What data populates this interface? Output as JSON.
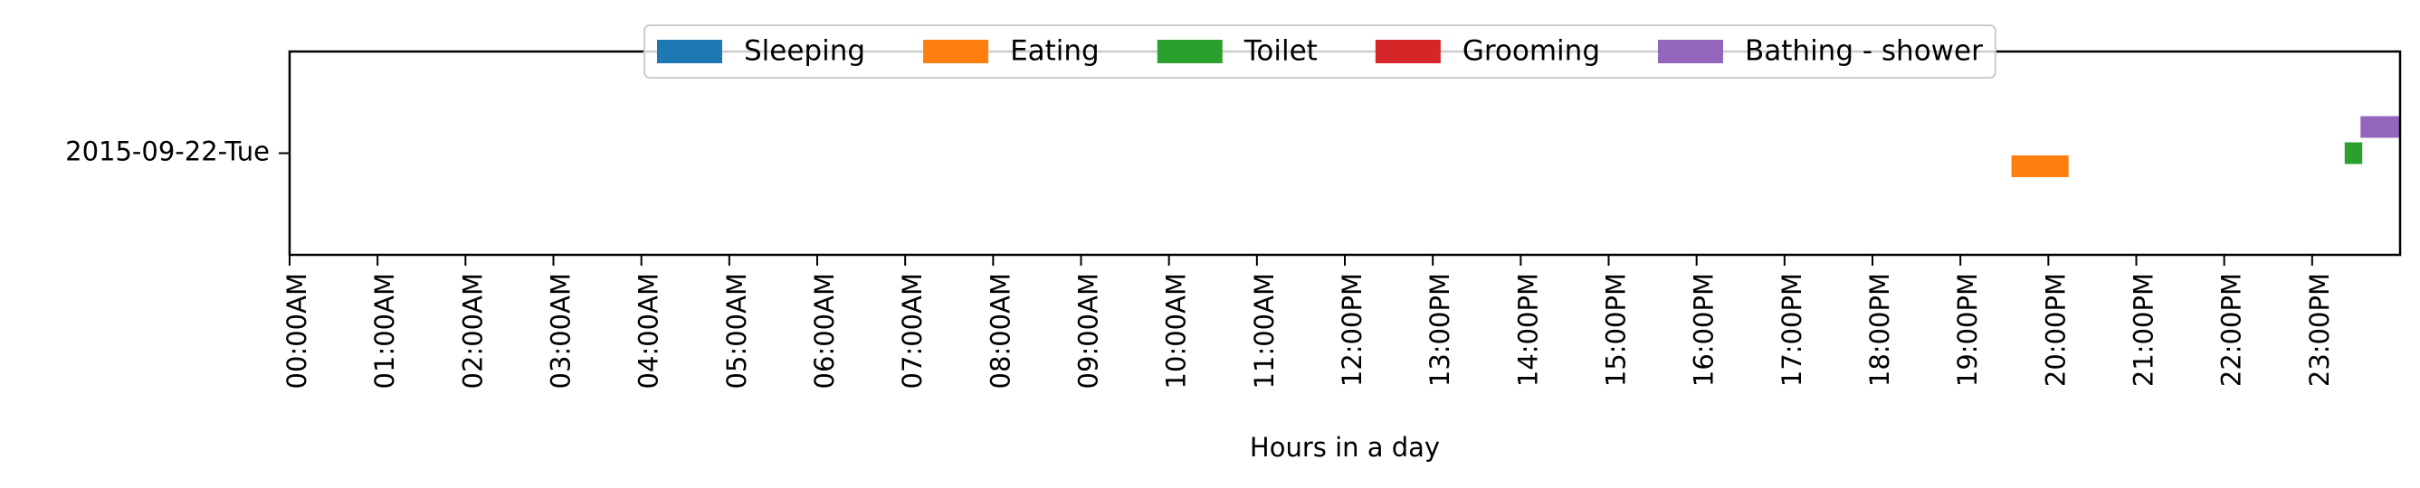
{
  "chart_data": {
    "type": "bar",
    "orientation": "horizontal-timeline",
    "xlabel": "Hours in a day",
    "ylabel": "",
    "xlim": [
      0,
      24
    ],
    "x_ticks": [
      "00:00AM",
      "01:00AM",
      "02:00AM",
      "03:00AM",
      "04:00AM",
      "05:00AM",
      "06:00AM",
      "07:00AM",
      "08:00AM",
      "09:00AM",
      "10:00AM",
      "11:00AM",
      "12:00PM",
      "13:00PM",
      "14:00PM",
      "15:00PM",
      "16:00PM",
      "17:00PM",
      "18:00PM",
      "19:00PM",
      "20:00PM",
      "21:00PM",
      "22:00PM",
      "23:00PM"
    ],
    "categories": [
      "2015-09-22-Tue"
    ],
    "legend_position": "top-center",
    "grid": false,
    "series": [
      {
        "name": "Sleeping",
        "color": "#1f77b4",
        "intervals": []
      },
      {
        "name": "Eating",
        "color": "#ff7f0e",
        "intervals": [
          {
            "category": "2015-09-22-Tue",
            "start": 19.58,
            "end": 20.23
          }
        ]
      },
      {
        "name": "Toilet",
        "color": "#2ca02c",
        "intervals": [
          {
            "category": "2015-09-22-Tue",
            "start": 23.37,
            "end": 23.57
          }
        ]
      },
      {
        "name": "Grooming",
        "color": "#d62728",
        "intervals": []
      },
      {
        "name": "Bathing - shower",
        "color": "#9467bd",
        "intervals": [
          {
            "category": "2015-09-22-Tue",
            "start": 23.55,
            "end": 24.0
          }
        ]
      }
    ]
  }
}
